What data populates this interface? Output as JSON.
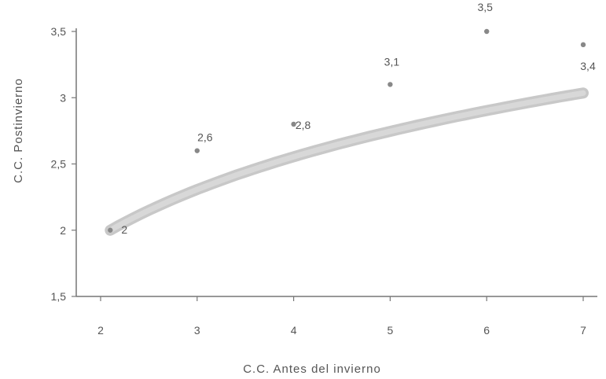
{
  "chart_data": {
    "type": "line",
    "xlabel": "C.C. Antes del invierno",
    "ylabel": "C.C. Postinvierno",
    "x_tick_labels": [
      "2",
      "3",
      "4",
      "5",
      "6",
      "7"
    ],
    "y_tick_labels": [
      "1,5",
      "2",
      "2,5",
      "3",
      "3,5"
    ],
    "xlim": [
      2,
      7
    ],
    "ylim": [
      1.5,
      3.5
    ],
    "grid": false,
    "series": [
      {
        "x": [
          2.1,
          3,
          4,
          5,
          6,
          7
        ],
        "y": [
          2.0,
          2.6,
          2.8,
          3.1,
          3.5,
          3.4
        ]
      }
    ],
    "data_labels": [
      "2",
      "2,6",
      "2,8",
      "3,1",
      "3,5",
      "3,4"
    ]
  }
}
